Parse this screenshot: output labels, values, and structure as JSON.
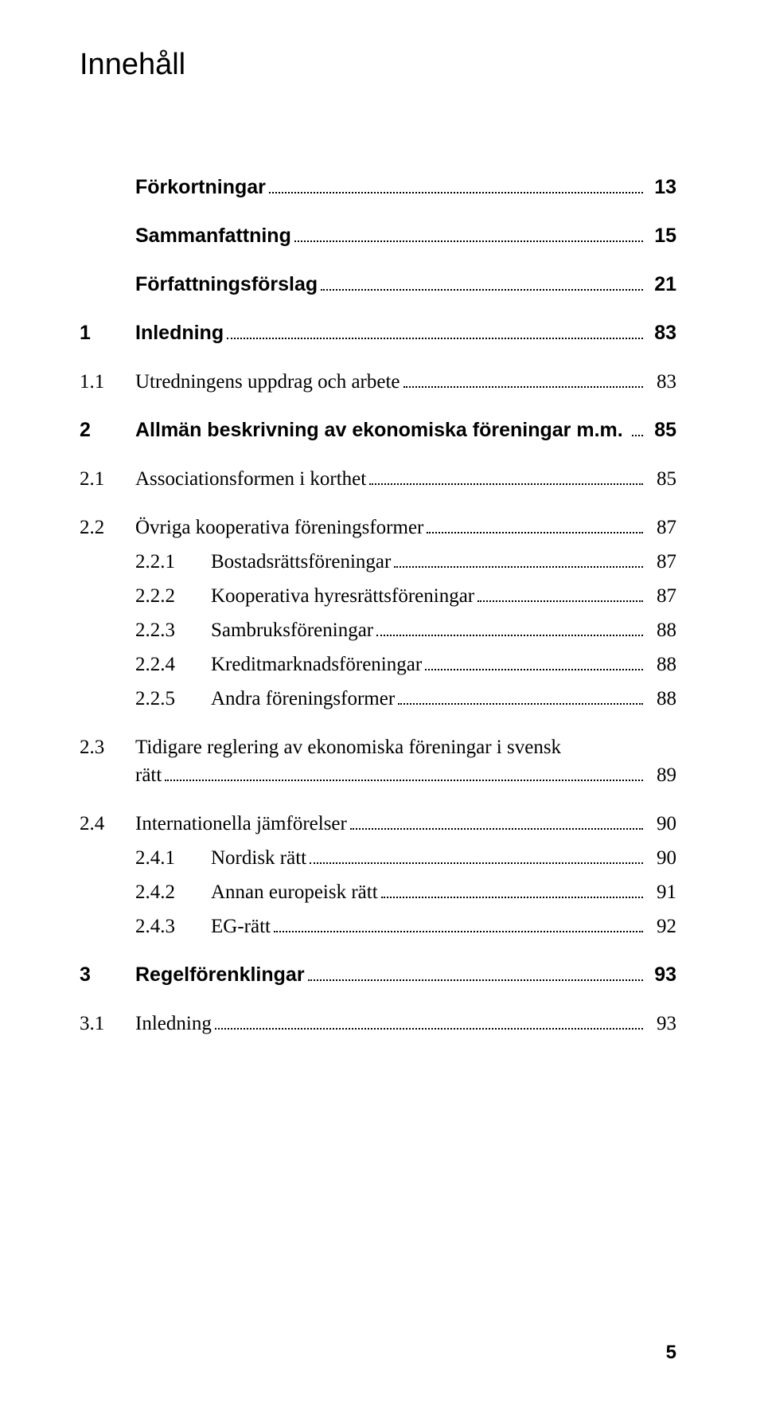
{
  "title": "Innehåll",
  "page_number": "5",
  "colors": {
    "text": "#000000",
    "background": "#ffffff"
  },
  "typography": {
    "title_font": "Arial",
    "title_size": 38,
    "body_font": "Georgia",
    "body_size": 25,
    "bold_font": "Arial"
  },
  "entries": [
    {
      "num": "",
      "label": "Förkortningar",
      "page": "13",
      "bold": true,
      "level": 0
    },
    {
      "num": "",
      "label": "Sammanfattning",
      "page": "15",
      "bold": true,
      "level": 0
    },
    {
      "num": "",
      "label": "Författningsförslag",
      "page": "21",
      "bold": true,
      "level": 0
    },
    {
      "num": "1",
      "label": "Inledning",
      "page": "83",
      "bold": true,
      "level": 0
    },
    {
      "num": "1.1",
      "label": "Utredningens uppdrag och arbete",
      "page": "83",
      "bold": false,
      "level": 1
    },
    {
      "num": "2",
      "label": "Allmän beskrivning av ekonomiska föreningar m.m. ",
      "page": "85",
      "bold": true,
      "level": 0,
      "gap": true
    },
    {
      "num": "2.1",
      "label": "Associationsformen i korthet",
      "page": "85",
      "bold": false,
      "level": 1
    },
    {
      "num": "2.2",
      "label": "Övriga kooperativa föreningsformer",
      "page": "87",
      "bold": false,
      "level": 1,
      "gap": true
    },
    {
      "num": "2.2.1",
      "label": "Bostadsrättsföreningar",
      "page": "87",
      "bold": false,
      "level": 2
    },
    {
      "num": "2.2.2",
      "label": "Kooperativa hyresrättsföreningar",
      "page": "87",
      "bold": false,
      "level": 2
    },
    {
      "num": "2.2.3",
      "label": "Sambruksföreningar",
      "page": "88",
      "bold": false,
      "level": 2
    },
    {
      "num": "2.2.4",
      "label": "Kreditmarknadsföreningar",
      "page": "88",
      "bold": false,
      "level": 2
    },
    {
      "num": "2.2.5",
      "label": "Andra föreningsformer",
      "page": "88",
      "bold": false,
      "level": 2
    },
    {
      "num": "2.3",
      "label_line1": "Tidigare reglering av ekonomiska föreningar i svensk",
      "label_line2": "rätt",
      "page": "89",
      "bold": false,
      "level": 1,
      "gap": true,
      "multiline": true
    },
    {
      "num": "2.4",
      "label": "Internationella jämförelser",
      "page": "90",
      "bold": false,
      "level": 1,
      "gap": true
    },
    {
      "num": "2.4.1",
      "label": "Nordisk rätt",
      "page": "90",
      "bold": false,
      "level": 2
    },
    {
      "num": "2.4.2",
      "label": "Annan europeisk rätt",
      "page": "91",
      "bold": false,
      "level": 2
    },
    {
      "num": "2.4.3",
      "label": "EG-rätt",
      "page": "92",
      "bold": false,
      "level": 2
    },
    {
      "num": "3",
      "label": "Regelförenklingar",
      "page": "93",
      "bold": true,
      "level": 0,
      "gap": true
    },
    {
      "num": "3.1",
      "label": "Inledning",
      "page": "93",
      "bold": false,
      "level": 1
    }
  ]
}
